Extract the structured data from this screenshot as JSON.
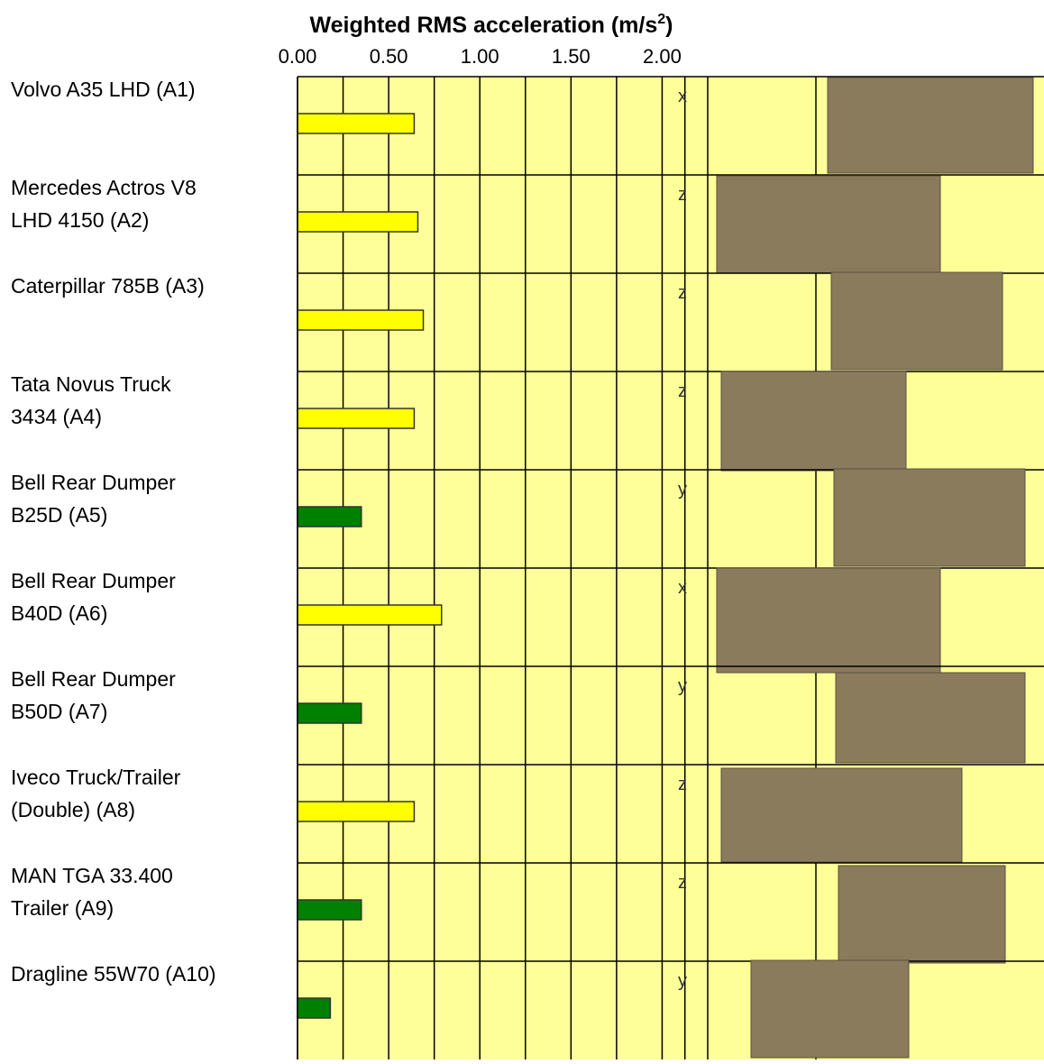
{
  "chart_data": {
    "type": "hbar",
    "title": "Weighted RMS acceleration (m/s",
    "title_sup": "2",
    "title_end": ")",
    "categories": [
      [
        "Volvo A35 LHD (A1)"
      ],
      [
        "Mercedes Actros V8",
        "LHD 4150 (A2)"
      ],
      [
        "Caterpillar 785B (A3)"
      ],
      [
        "Tata Novus Truck",
        "3434 (A4)"
      ],
      [
        "Bell Rear Dumper",
        "B25D (A5)"
      ],
      [
        "Bell Rear Dumper",
        "B40D (A6)"
      ],
      [
        "Bell Rear Dumper",
        "B50D (A7)"
      ],
      [
        "Iveco Truck/Trailer",
        "(Double) (A8)"
      ],
      [
        "MAN TGA 33.400",
        "Trailer (A9)"
      ],
      [
        "Dragline 55W70 (A10)"
      ]
    ],
    "values": [
      0.64,
      0.66,
      0.69,
      0.64,
      0.35,
      0.79,
      0.35,
      0.64,
      0.35,
      0.18
    ],
    "colors": [
      "#ffff00",
      "#ffff00",
      "#ffff00",
      "#ffff00",
      "#008000",
      "#ffff00",
      "#008000",
      "#ffff00",
      "#008000",
      "#008000"
    ],
    "axis_labels": [
      "x",
      "z",
      "z",
      "z",
      "y",
      "x",
      "y",
      "z",
      "z",
      "y"
    ],
    "xlim": [
      0,
      2.25
    ],
    "xticks": [
      {
        "value": 0,
        "label": "0.00"
      },
      {
        "value": 0.5,
        "label": "0.50"
      },
      {
        "value": 1,
        "label": "1.00"
      },
      {
        "value": 1.5,
        "label": "1.50"
      },
      {
        "value": 2,
        "label": "2.00"
      }
    ],
    "background": "#ffff99",
    "grid": true
  }
}
